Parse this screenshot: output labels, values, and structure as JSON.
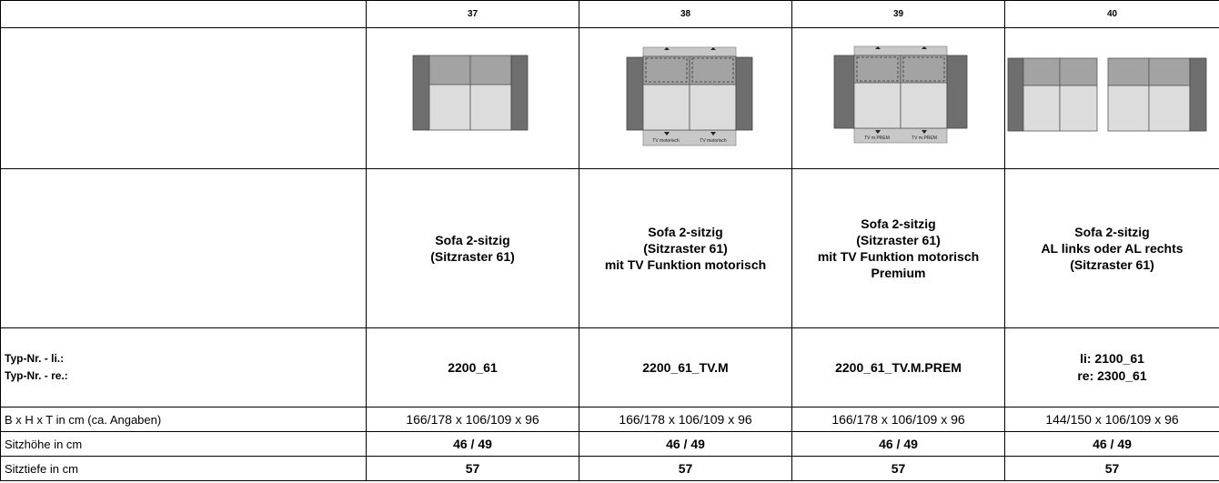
{
  "table": {
    "header": [
      "37",
      "38",
      "39",
      "40"
    ],
    "sketch_labels": {
      "38": [
        "TV motorisch",
        "TV motorisch"
      ],
      "39": [
        "TV m.PREM",
        "TV m.PREM"
      ]
    },
    "descriptions": [
      [
        "Sofa 2-sitzig",
        "(Sitzraster 61)"
      ],
      [
        "Sofa 2-sitzig",
        "(Sitzraster 61)",
        "mit TV Funktion motorisch"
      ],
      [
        "Sofa 2-sitzig",
        "(Sitzraster 61)",
        "mit TV Funktion motorisch",
        "Premium"
      ],
      [
        "Sofa 2-sitzig",
        "AL links oder AL rechts",
        "(Sitzraster 61)"
      ]
    ],
    "type_label": [
      "Typ-Nr. - li.:",
      "Typ-Nr. - re.:"
    ],
    "type_numbers": [
      [
        "2200_61"
      ],
      [
        "2200_61_TV.M"
      ],
      [
        "2200_61_TV.M.PREM"
      ],
      [
        "li: 2100_61",
        "re: 2300_61"
      ]
    ],
    "rows": [
      [
        "B x H x T in cm (ca. Angaben)",
        "166/178 x 106/109 x 96",
        "166/178 x 106/109 x 96",
        "166/178 x 106/109 x 96",
        "144/150 x 106/109 x 96"
      ],
      [
        "Sitzhöhe in cm",
        "46 / 49",
        "46 / 49",
        "46 / 49",
        "46 / 49"
      ],
      [
        "Sitztiefe in cm",
        "57",
        "57",
        "57",
        "57"
      ]
    ]
  }
}
